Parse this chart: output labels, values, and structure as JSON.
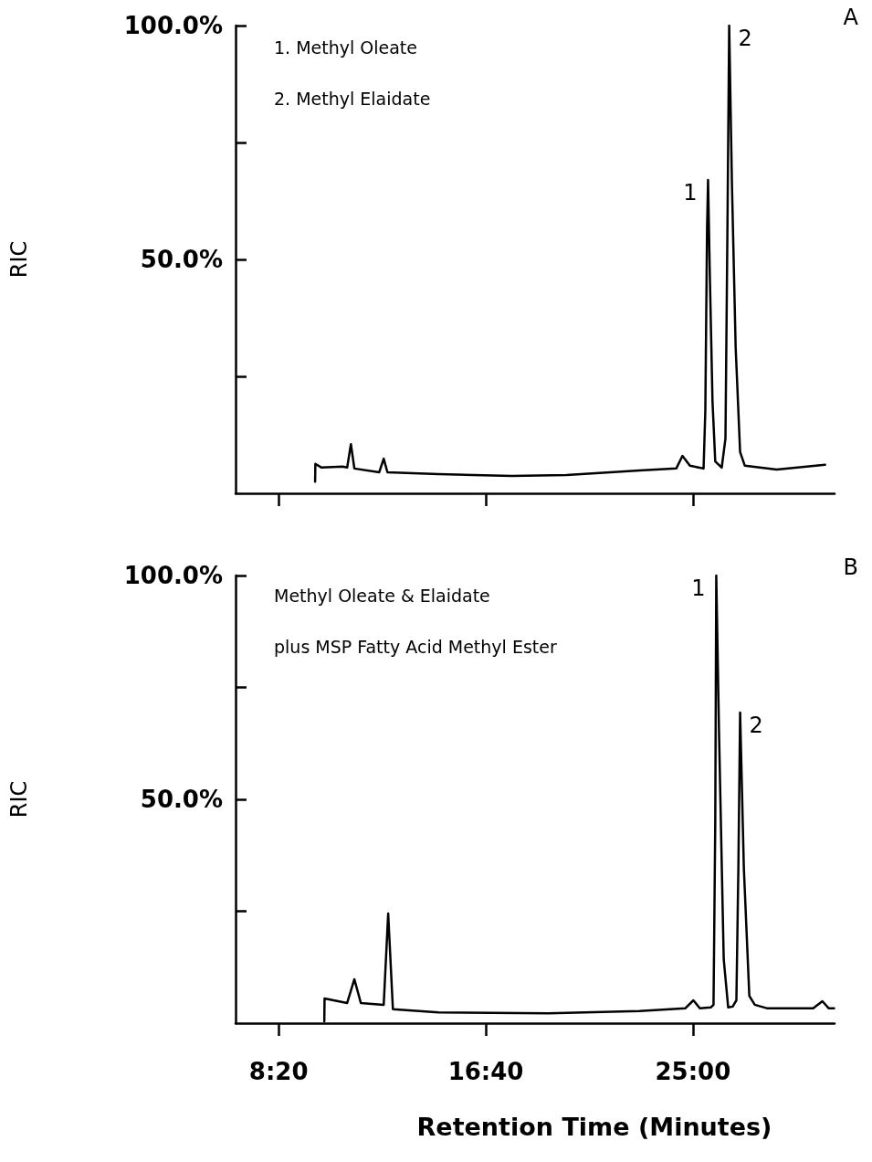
{
  "chart_data": [
    {
      "type": "line",
      "title": "A",
      "ylabel": "RIC",
      "annotations": [
        "1. Methyl Oleate",
        "2. Methyl Elaidate",
        {
          "text": "1",
          "x": 25.61,
          "y": 67
        },
        {
          "text": "2",
          "x": 26.46,
          "y": 100
        }
      ],
      "series": [
        {
          "color": "#000000",
          "x": [
            9.8,
            9.81,
            10.06,
            10.91,
            11.09,
            11.24,
            11.38,
            12.38,
            12.56,
            12.71,
            14.77,
            17.71,
            19.91,
            22.85,
            24.33,
            24.58,
            24.88,
            25.43,
            25.5,
            25.57,
            25.61,
            25.68,
            25.79,
            25.9,
            26.16,
            26.31,
            26.39,
            26.46,
            26.57,
            26.72,
            26.9,
            27.09,
            28.37,
            30.32
          ],
          "values": [
            2.5,
            6.3,
            5.5,
            5.7,
            5.5,
            10.5,
            5.3,
            4.5,
            7.4,
            4.5,
            4.1,
            3.7,
            3.9,
            4.9,
            5.3,
            8,
            5.9,
            5.3,
            17.6,
            56.6,
            67,
            46.9,
            19.5,
            6.8,
            5.5,
            11.7,
            56.6,
            100,
            66.4,
            31.3,
            8.8,
            5.9,
            5.1,
            6.1
          ]
        }
      ],
      "xlim": [
        6.6,
        30.7
      ],
      "xticks": [
        {
          "value": 8.3333,
          "label": null
        },
        {
          "value": 16.6667,
          "label": null
        },
        {
          "value": 25,
          "label": null
        }
      ],
      "ylim": [
        0,
        100
      ],
      "yticks": [
        {
          "value": 25,
          "label": null
        },
        {
          "value": 50,
          "label": "50.0%"
        },
        {
          "value": 75,
          "label": null
        },
        {
          "value": 100,
          "label": "100.0%"
        }
      ],
      "tick_labels": "y",
      "grid": false,
      "marker": "none",
      "line_style": "solid"
    },
    {
      "type": "line",
      "title": "B",
      "ylabel": "RIC",
      "xlabel": "Retention Time (Minutes)",
      "annotations": [
        "Methyl Oleate & Elaidate",
        "plus MSP Fatty Acid Methyl Ester",
        {
          "text": "1",
          "x": 25.94,
          "y": 100
        },
        {
          "text": "2",
          "x": 26.9,
          "y": 69.4
        }
      ],
      "series": [
        {
          "color": "#000000",
          "x": [
            10.17,
            10.18,
            11.09,
            11.38,
            11.64,
            12.56,
            12.74,
            12.93,
            14.77,
            19.18,
            22.85,
            24.69,
            25.02,
            25.28,
            25.72,
            25.83,
            25.9,
            25.94,
            26.05,
            26.24,
            26.42,
            26.6,
            26.75,
            26.83,
            26.9,
            27.05,
            27.27,
            27.49,
            28,
            29.84,
            30.21,
            30.47,
            30.68
          ],
          "values": [
            0.4,
            5.5,
            4.5,
            9.8,
            4.5,
            4.1,
            24.5,
            3.1,
            2.4,
            2.2,
            2.7,
            3.3,
            5.1,
            3.3,
            3.5,
            4.1,
            44.9,
            100,
            65.3,
            14.3,
            3.5,
            3.7,
            5.1,
            34.7,
            69.4,
            34.7,
            6.1,
            4.1,
            3.3,
            3.3,
            4.9,
            3.3,
            3.3
          ]
        }
      ],
      "xlim": [
        6.6,
        30.7
      ],
      "xticks": [
        {
          "value": 8.3333,
          "label": "8:20"
        },
        {
          "value": 16.6667,
          "label": "16:40"
        },
        {
          "value": 25,
          "label": "25:00"
        }
      ],
      "ylim": [
        0,
        100
      ],
      "yticks": [
        {
          "value": 25,
          "label": null
        },
        {
          "value": 50,
          "label": "50.0%"
        },
        {
          "value": 75,
          "label": null
        },
        {
          "value": 100,
          "label": "100.0%"
        }
      ],
      "grid": false,
      "marker": "none",
      "line_style": "solid"
    }
  ]
}
